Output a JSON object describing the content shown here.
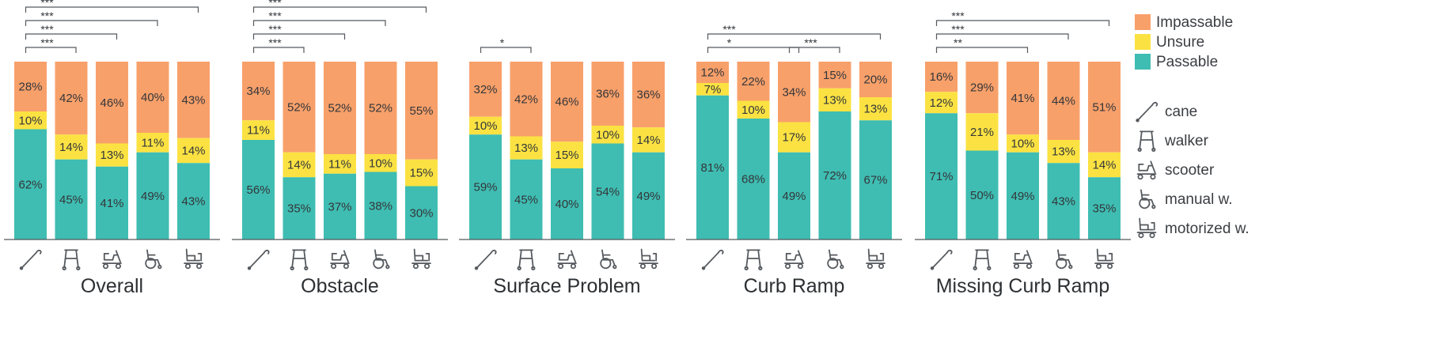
{
  "chart_data": {
    "type": "bar",
    "stacked": true,
    "ylim": [
      0,
      100
    ],
    "legend": {
      "position": "right",
      "items": [
        {
          "label": "Impassable",
          "color": "#F8A06A"
        },
        {
          "label": "Unsure",
          "color": "#FBE242"
        },
        {
          "label": "Passable",
          "color": "#3FBDB2"
        }
      ]
    },
    "device_legend": [
      {
        "label": "cane",
        "icon": "cane-icon"
      },
      {
        "label": "walker",
        "icon": "walker-icon"
      },
      {
        "label": "scooter",
        "icon": "scooter-icon"
      },
      {
        "label": "manual w.",
        "icon": "manual-wheelchair-icon"
      },
      {
        "label": "motorized w.",
        "icon": "motorized-wheelchair-icon"
      }
    ],
    "categories": [
      "cane",
      "walker",
      "scooter",
      "manual w.",
      "motorized w."
    ],
    "panels": [
      {
        "title": "Overall",
        "passable": [
          62,
          45,
          41,
          49,
          43
        ],
        "unsure": [
          10,
          14,
          13,
          11,
          14
        ],
        "impassable": [
          28,
          42,
          46,
          40,
          43
        ],
        "significance": [
          {
            "from": 0,
            "to": 1,
            "label": "***"
          },
          {
            "from": 0,
            "to": 2,
            "label": "***"
          },
          {
            "from": 0,
            "to": 3,
            "label": "***"
          },
          {
            "from": 0,
            "to": 4,
            "label": "***"
          }
        ]
      },
      {
        "title": "Obstacle",
        "passable": [
          56,
          35,
          37,
          38,
          30
        ],
        "unsure": [
          11,
          14,
          11,
          10,
          15
        ],
        "impassable": [
          34,
          52,
          52,
          52,
          55
        ],
        "significance": [
          {
            "from": 0,
            "to": 1,
            "label": "***"
          },
          {
            "from": 0,
            "to": 2,
            "label": "***"
          },
          {
            "from": 0,
            "to": 3,
            "label": "***"
          },
          {
            "from": 0,
            "to": 4,
            "label": "***"
          }
        ]
      },
      {
        "title": "Surface Problem",
        "passable": [
          59,
          45,
          40,
          54,
          49
        ],
        "unsure": [
          10,
          13,
          15,
          10,
          14
        ],
        "impassable": [
          32,
          42,
          46,
          36,
          36
        ],
        "significance": [
          {
            "from": 0,
            "to": 1,
            "label": "*"
          }
        ]
      },
      {
        "title": "Curb Ramp",
        "passable": [
          81,
          68,
          49,
          72,
          67
        ],
        "unsure": [
          7,
          10,
          17,
          13,
          13
        ],
        "impassable": [
          12,
          22,
          34,
          15,
          20
        ],
        "significance": [
          {
            "from": 0,
            "to": 2,
            "label": "*"
          },
          {
            "from": 2,
            "to": 3,
            "label": "***"
          },
          {
            "from": 0,
            "to": 4,
            "label": "***"
          }
        ]
      },
      {
        "title": "Missing Curb Ramp",
        "passable": [
          71,
          50,
          49,
          43,
          35
        ],
        "unsure": [
          12,
          21,
          10,
          13,
          14
        ],
        "impassable": [
          16,
          29,
          41,
          44,
          51
        ],
        "significance": [
          {
            "from": 0,
            "to": 2,
            "label": "**"
          },
          {
            "from": 0,
            "to": 3,
            "label": "***"
          },
          {
            "from": 0,
            "to": 4,
            "label": "***"
          }
        ]
      }
    ]
  }
}
